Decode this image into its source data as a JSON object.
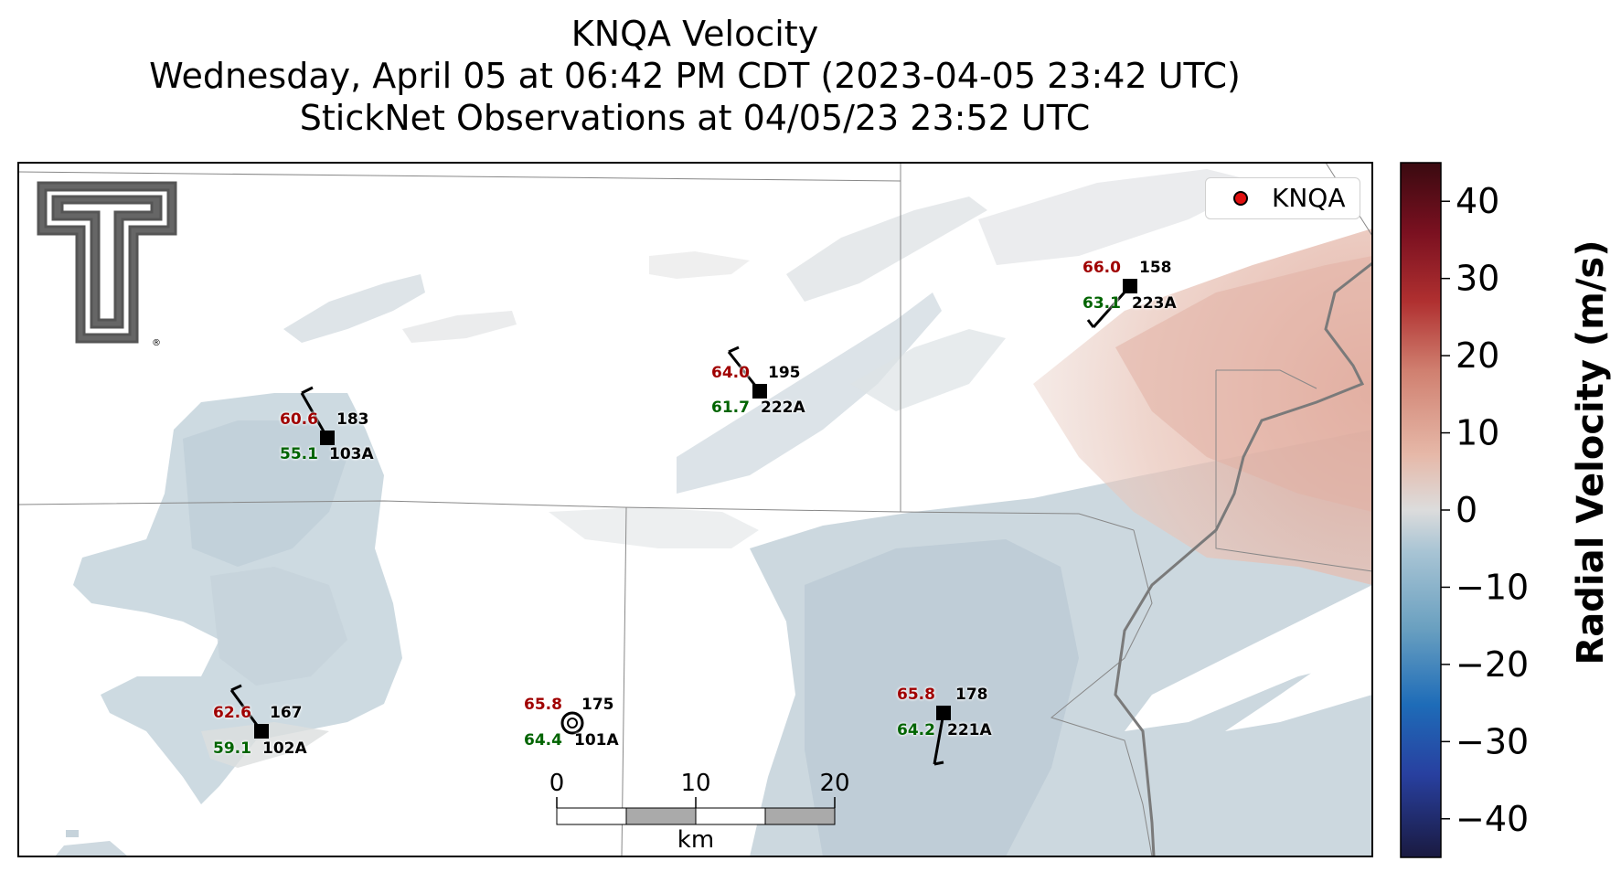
{
  "title": {
    "line1": "KNQA Velocity",
    "line2": "Wednesday, April 05 at 06:42 PM CDT (2023-04-05 23:42 UTC)",
    "line3": "StickNet Observations at 04/05/23 23:52 UTC"
  },
  "legend": {
    "label": "KNQA",
    "marker_color": "#e01010"
  },
  "colorbar": {
    "label": "Radial Velocity (m/s)",
    "range": [
      -45,
      45
    ],
    "ticks": [
      40,
      30,
      20,
      10,
      0,
      -10,
      -20,
      -30,
      -40
    ],
    "tick_labels": [
      "40",
      "30",
      "20",
      "10",
      "0",
      "−10",
      "−20",
      "−30",
      "−40"
    ],
    "colors": [
      "#1a1a40",
      "#2840a0",
      "#1e6cb8",
      "#6aa0c0",
      "#a8c4d4",
      "#dcdcdc",
      "#e6b8a8",
      "#d08070",
      "#b03030",
      "#7a1020",
      "#3a0a10"
    ]
  },
  "scale_bar": {
    "ticks": [
      "0",
      "10",
      "20"
    ],
    "unit": "km"
  },
  "logo": {
    "name": "Texas Tech Double T",
    "mark": "®"
  },
  "stations": [
    {
      "id": "103A",
      "temp": "60.6",
      "dew": "55.1",
      "dir": "183"
    },
    {
      "id": "222A",
      "temp": "64.0",
      "dew": "61.7",
      "dir": "195"
    },
    {
      "id": "223A",
      "temp": "66.0",
      "dew": "63.1",
      "dir": "158"
    },
    {
      "id": "102A",
      "temp": "62.6",
      "dew": "59.1",
      "dir": "167"
    },
    {
      "id": "101A",
      "temp": "65.8",
      "dew": "64.4",
      "dir": "175"
    },
    {
      "id": "221A",
      "temp": "65.8",
      "dew": "64.2",
      "dir": "178"
    }
  ]
}
